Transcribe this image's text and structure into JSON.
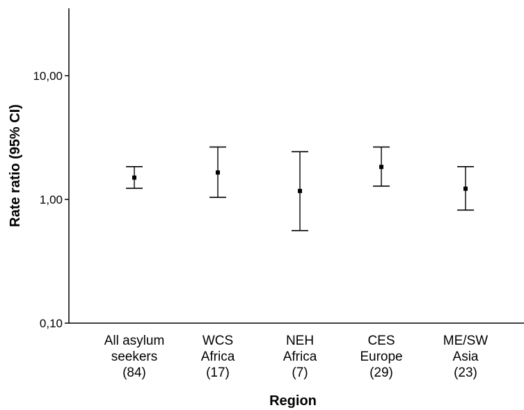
{
  "chart_data": {
    "type": "scatter",
    "title": "",
    "xlabel": "Region",
    "ylabel": "Rate ratio (95% CI)",
    "yscale": "log",
    "ylim": [
      0.1,
      35
    ],
    "yticks": [
      {
        "value": 0.1,
        "label": "0,10"
      },
      {
        "value": 1,
        "label": "1,00"
      },
      {
        "value": 10,
        "label": "10,00"
      }
    ],
    "categories": [
      {
        "lines": [
          "All asylum",
          "seekers",
          "(84)"
        ]
      },
      {
        "lines": [
          "WCS",
          "Africa",
          "(17)"
        ]
      },
      {
        "lines": [
          "NEH",
          "Africa",
          "(7)"
        ]
      },
      {
        "lines": [
          "CES",
          "Europe",
          "(29)"
        ]
      },
      {
        "lines": [
          "ME/SW",
          "Asia",
          "(23)"
        ]
      }
    ],
    "series": [
      {
        "estimate": [
          1.5,
          1.65,
          1.17,
          1.83,
          1.22
        ],
        "ci_lower": [
          1.23,
          1.04,
          0.56,
          1.28,
          0.82
        ],
        "ci_upper": [
          1.84,
          2.65,
          2.43,
          2.65,
          1.84
        ]
      }
    ],
    "grid": false,
    "legend": "none"
  }
}
